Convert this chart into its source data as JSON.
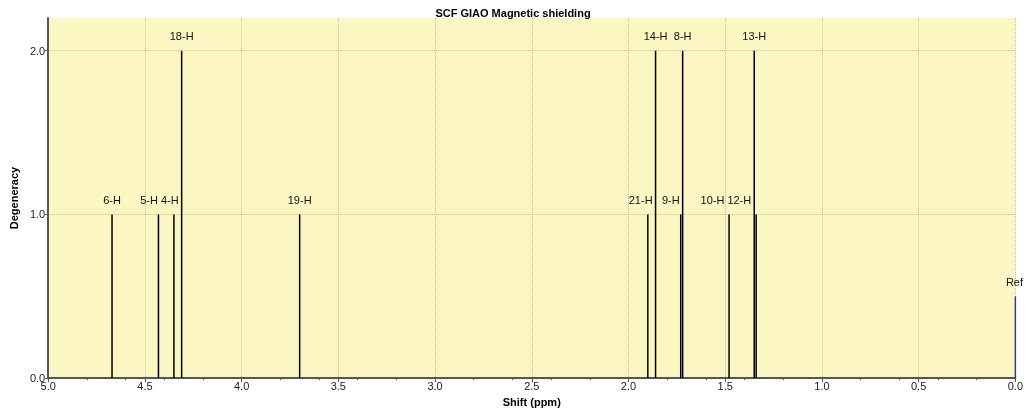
{
  "chart_data": {
    "type": "bar",
    "title": "SCF GIAO Magnetic shielding",
    "xlabel": "Shift (ppm)",
    "ylabel": "Degeneracy",
    "x": [
      4.67,
      4.43,
      4.35,
      4.31,
      3.7,
      1.9,
      1.86,
      1.73,
      1.72,
      1.48,
      1.35,
      1.34,
      0.0
    ],
    "values": [
      1,
      1,
      1,
      2,
      1,
      1,
      2,
      1,
      2,
      1,
      2,
      1,
      0.5
    ],
    "colors": [
      "#000000",
      "#000000",
      "#000000",
      "#000000",
      "#000000",
      "#000000",
      "#000000",
      "#000000",
      "#000000",
      "#000000",
      "#000000",
      "#000000",
      "#3a3a9a"
    ],
    "annotations": [
      {
        "text": "6-H",
        "x": 4.67,
        "y": 1
      },
      {
        "text": "5-H",
        "x": 4.43,
        "y": 1
      },
      {
        "text": "4-H",
        "x": 4.35,
        "y": 1
      },
      {
        "text": "18-H",
        "x": 4.31,
        "y": 2
      },
      {
        "text": "19-H",
        "x": 3.7,
        "y": 1
      },
      {
        "text": "21-H",
        "x": 1.9,
        "y": 1
      },
      {
        "text": "14-H",
        "x": 1.86,
        "y": 2
      },
      {
        "text": "9-H",
        "x": 1.73,
        "y": 1
      },
      {
        "text": "8-H",
        "x": 1.72,
        "y": 2
      },
      {
        "text": "10-H",
        "x": 1.48,
        "y": 1
      },
      {
        "text": "13-H",
        "x": 1.35,
        "y": 2
      },
      {
        "text": "12-H",
        "x": 1.34,
        "y": 1
      },
      {
        "text": "Ref",
        "x": 0.0,
        "y": 0.5
      }
    ],
    "xlim": [
      5.0,
      0.0
    ],
    "xticks": [
      {
        "value": 5.0,
        "label": "5.0"
      },
      {
        "value": 4.5,
        "label": "4.5"
      },
      {
        "value": 4.0,
        "label": "4.0"
      },
      {
        "value": 3.5,
        "label": "3.5"
      },
      {
        "value": 3.0,
        "label": "3.0"
      },
      {
        "value": 2.5,
        "label": "2.5"
      },
      {
        "value": 2.0,
        "label": "2.0"
      },
      {
        "value": 1.5,
        "label": "1.5"
      },
      {
        "value": 1.0,
        "label": "1.0"
      },
      {
        "value": 0.5,
        "label": "0.5"
      },
      {
        "value": 0.0,
        "label": "0.0"
      }
    ],
    "ylim": [
      0,
      2.2
    ],
    "yticks": [
      {
        "value": 0,
        "label": "0.0"
      },
      {
        "value": 1,
        "label": "1.0"
      },
      {
        "value": 2,
        "label": "2.0"
      }
    ],
    "grid": true
  }
}
